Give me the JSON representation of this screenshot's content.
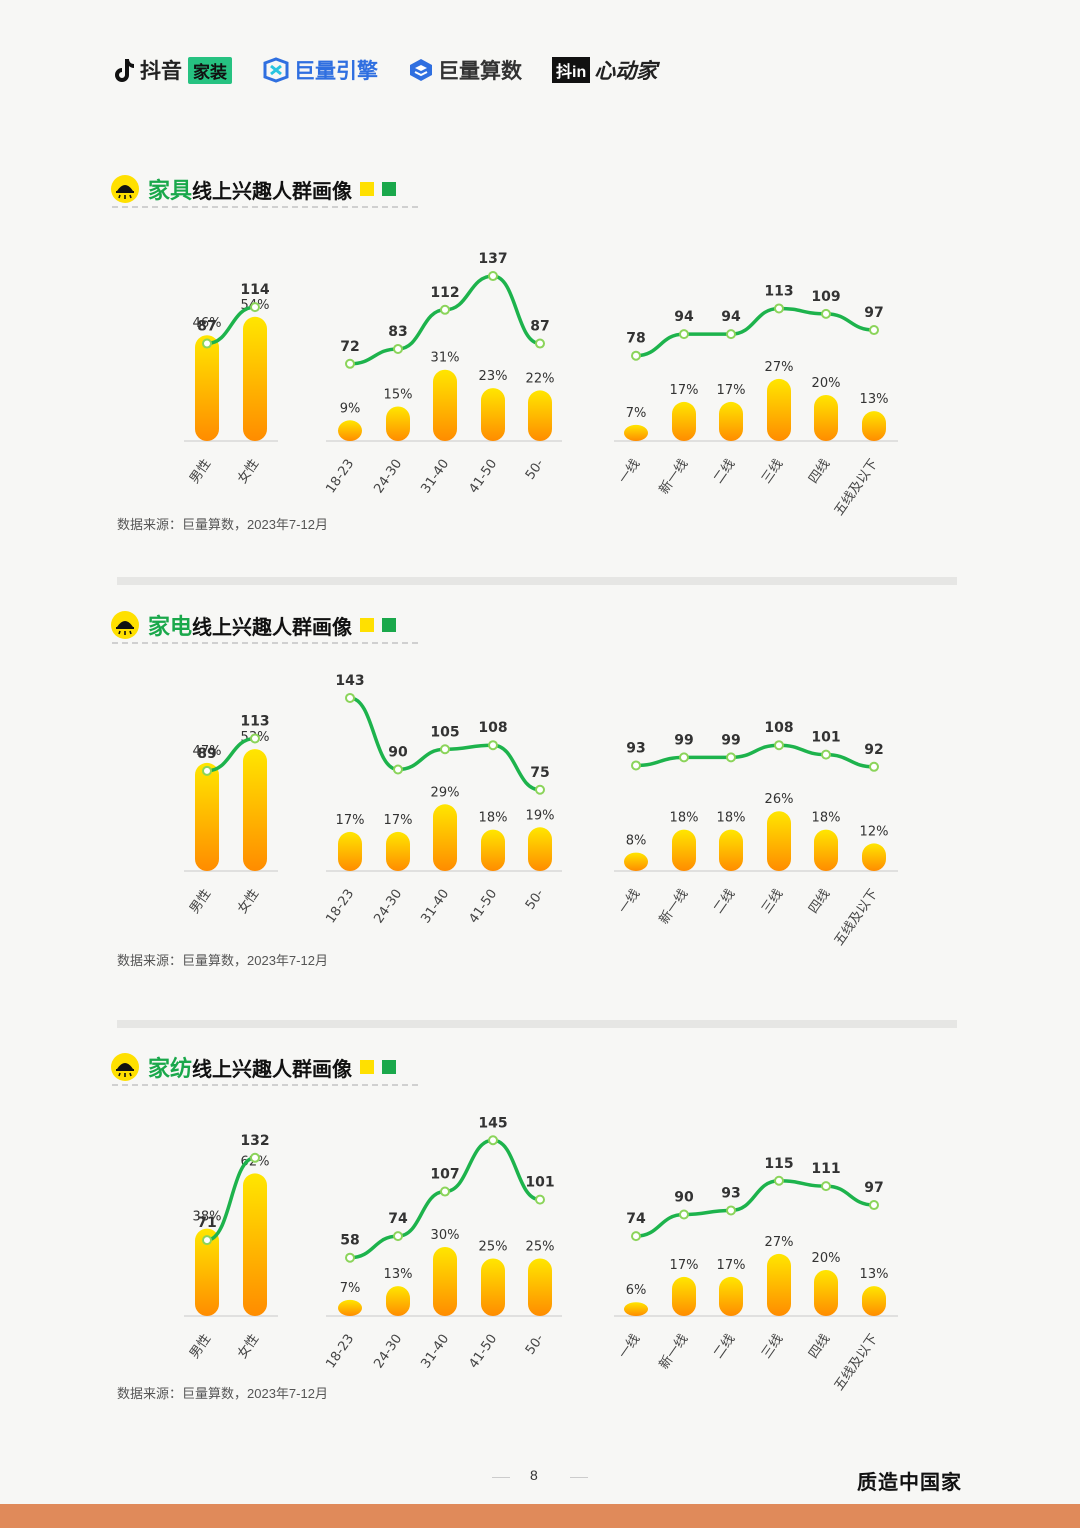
{
  "header": {
    "logos": {
      "douyin": "抖音",
      "douyin_tag": "家装",
      "juliang_engine": "巨量引擎",
      "juliang_suanshu": "巨量算数",
      "xindongjia_box": "抖in",
      "xindongjia": "心动家"
    }
  },
  "colors": {
    "line": "#1db34c",
    "bar_top": "#ffe600",
    "bar_bottom": "#ff8c00",
    "sq_yellow": "#ffe000",
    "sq_green": "#1aa84b",
    "footer_bar": "#e08a5a"
  },
  "sections": [
    {
      "title_highlight": "家具",
      "title_rest": "线上兴趣人群画像",
      "source": "数据来源：巨量算数，2023年7-12月"
    },
    {
      "title_highlight": "家电",
      "title_rest": "线上兴趣人群画像",
      "source": "数据来源：巨量算数，2023年7-12月"
    },
    {
      "title_highlight": "家纺",
      "title_rest": "线上兴趣人群画像",
      "source": "数据来源：巨量算数，2023年7-12月"
    }
  ],
  "chart_data": [
    {
      "type": "bar+line",
      "title": "家具线上兴趣人群画像",
      "groups": [
        {
          "name": "gender",
          "categories": [
            "男性",
            "女性"
          ],
          "share": [
            "46%",
            "54%"
          ],
          "share_values": [
            46,
            54
          ],
          "tgi": [
            87,
            114
          ]
        },
        {
          "name": "age",
          "categories": [
            "18-23",
            "24-30",
            "31-40",
            "41-50",
            "50-"
          ],
          "share": [
            "9%",
            "15%",
            "31%",
            "23%",
            "22%"
          ],
          "share_values": [
            9,
            15,
            31,
            23,
            22
          ],
          "tgi": [
            72,
            83,
            112,
            137,
            87
          ]
        },
        {
          "name": "city",
          "categories": [
            "一线",
            "新一线",
            "二线",
            "三线",
            "四线",
            "五线及以下"
          ],
          "share": [
            "7%",
            "17%",
            "17%",
            "27%",
            "20%",
            "13%"
          ],
          "share_values": [
            7,
            17,
            17,
            27,
            20,
            13
          ],
          "tgi": [
            78,
            94,
            94,
            113,
            109,
            97
          ]
        }
      ]
    },
    {
      "type": "bar+line",
      "title": "家电线上兴趣人群画像",
      "groups": [
        {
          "name": "gender",
          "categories": [
            "男性",
            "女性"
          ],
          "share": [
            "47%",
            "53%"
          ],
          "share_values": [
            47,
            53
          ],
          "tgi": [
            89,
            113
          ]
        },
        {
          "name": "age",
          "categories": [
            "18-23",
            "24-30",
            "31-40",
            "41-50",
            "50-"
          ],
          "share": [
            "17%",
            "17%",
            "29%",
            "18%",
            "19%"
          ],
          "share_values": [
            17,
            17,
            29,
            18,
            19
          ],
          "tgi": [
            143,
            90,
            105,
            108,
            75
          ]
        },
        {
          "name": "city",
          "categories": [
            "一线",
            "新一线",
            "二线",
            "三线",
            "四线",
            "五线及以下"
          ],
          "share": [
            "8%",
            "18%",
            "18%",
            "26%",
            "18%",
            "12%"
          ],
          "share_values": [
            8,
            18,
            18,
            26,
            18,
            12
          ],
          "tgi": [
            93,
            99,
            99,
            108,
            101,
            92
          ]
        }
      ]
    },
    {
      "type": "bar+line",
      "title": "家纺线上兴趣人群画像",
      "groups": [
        {
          "name": "gender",
          "categories": [
            "男性",
            "女性"
          ],
          "share": [
            "38%",
            "62%"
          ],
          "share_values": [
            38,
            62
          ],
          "tgi": [
            71,
            132
          ]
        },
        {
          "name": "age",
          "categories": [
            "18-23",
            "24-30",
            "31-40",
            "41-50",
            "50-"
          ],
          "share": [
            "7%",
            "13%",
            "30%",
            "25%",
            "25%"
          ],
          "share_values": [
            7,
            13,
            30,
            25,
            25
          ],
          "tgi": [
            58,
            74,
            107,
            145,
            101
          ]
        },
        {
          "name": "city",
          "categories": [
            "一线",
            "新一线",
            "二线",
            "三线",
            "四线",
            "五线及以下"
          ],
          "share": [
            "6%",
            "17%",
            "17%",
            "27%",
            "20%",
            "13%"
          ],
          "share_values": [
            6,
            17,
            17,
            27,
            20,
            13
          ],
          "tgi": [
            74,
            90,
            93,
            115,
            111,
            97
          ]
        }
      ]
    }
  ],
  "footer": {
    "page_number": "8",
    "brand": "质造中国家"
  }
}
